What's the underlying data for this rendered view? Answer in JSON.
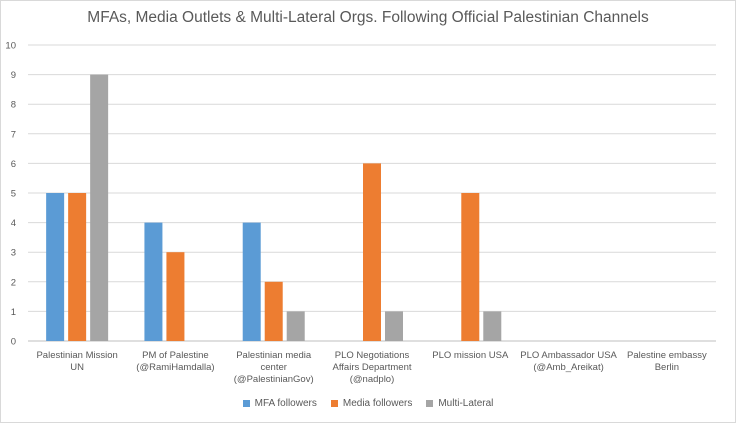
{
  "chart_data": {
    "type": "bar",
    "title": "MFAs, Media Outlets & Multi-Lateral Orgs. Following Official Palestinian Channels",
    "xlabel": "",
    "ylabel": "",
    "ylim": [
      0,
      10
    ],
    "yticks": [
      0,
      1,
      2,
      3,
      4,
      5,
      6,
      7,
      8,
      9,
      10
    ],
    "grid": true,
    "legend_position": "bottom",
    "categories": [
      [
        "Palestinian Mission",
        "UN"
      ],
      [
        "PM of Palestine",
        "(@RamiHamdalla)"
      ],
      [
        "Palestinian media",
        "center",
        "(@PalestinianGov)"
      ],
      [
        "PLO Negotiations",
        "Affairs Department",
        "(@nadplo)"
      ],
      [
        "PLO mission USA"
      ],
      [
        "PLO Ambassador USA",
        "(@Amb_Areikat)"
      ],
      [
        "Palestine embassy",
        "Berlin"
      ]
    ],
    "series": [
      {
        "name": "MFA followers",
        "color": "#5b9bd5",
        "values": [
          5,
          4,
          4,
          0,
          0,
          0,
          0
        ]
      },
      {
        "name": "Media followers",
        "color": "#ed7d31",
        "values": [
          5,
          3,
          2,
          6,
          5,
          0,
          0
        ]
      },
      {
        "name": "Multi-Lateral",
        "color": "#a5a5a5",
        "values": [
          9,
          0,
          1,
          1,
          1,
          0,
          0
        ]
      }
    ]
  }
}
